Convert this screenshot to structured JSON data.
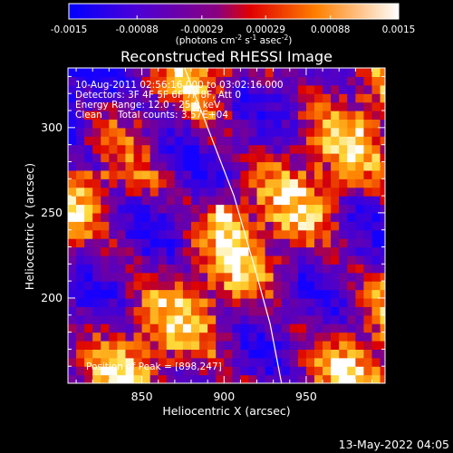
{
  "chart_data": {
    "type": "heatmap",
    "title": "Reconstructed RHESSI Image",
    "xlabel": "Heliocentric X (arcsec)",
    "ylabel": "Heliocentric Y (arcsec)",
    "xlim": [
      805,
      998
    ],
    "ylim": [
      150,
      335
    ],
    "x_ticks": [
      850,
      900,
      950
    ],
    "y_ticks": [
      200,
      250,
      300
    ],
    "colorbar": {
      "ticks": [
        -0.0015,
        -0.00088,
        -0.00029,
        0.00029,
        0.00088,
        0.0015
      ],
      "tick_labels": [
        "-0.0015",
        "-0.00088",
        "-0.00029",
        "0.00029",
        "0.00088",
        "0.0015"
      ],
      "range": [
        -0.0015,
        0.0015
      ],
      "unit_label": "(photons cm",
      "unit_sup1": "-2",
      "unit_mid": " s",
      "unit_sup2": "-1",
      "unit_tail": " asec",
      "unit_sup3": "-2",
      "unit_close": ")",
      "colors": [
        "#0000ff",
        "#5a00c8",
        "#ff0000",
        "#ffa000",
        "#ffffff"
      ]
    },
    "annotations": [
      "10-Aug-2011 02:56:16.000 to 03:02:16.000",
      "Detectors: 3F 4F 5F 6F 7F 8F, Att 0",
      "Energy Range: 12.0 - 25.0 keV",
      "Clean",
      "Total counts: 3.57E+04"
    ],
    "peak_label": "Position of Peak = [898,247]",
    "peak": [
      898,
      247
    ],
    "limb_curve": [
      [
        876,
        335
      ],
      [
        890,
        300
      ],
      [
        906,
        260
      ],
      [
        918,
        220
      ],
      [
        928,
        185
      ],
      [
        935,
        150
      ]
    ]
  },
  "footer": {
    "date": "13-May-2022 04:05"
  }
}
